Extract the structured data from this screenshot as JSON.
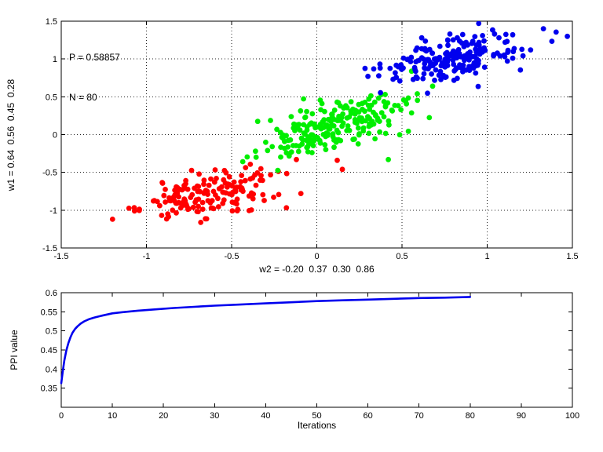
{
  "window": {
    "background": "#ffffff",
    "frame_color": "#000000",
    "grid_style": "dotted"
  },
  "chart_data": [
    {
      "type": "scatter",
      "title": "",
      "xlabel": "w2 = -0.20  0.37  0.30  0.86",
      "ylabel": "w1 = 0.64  0.56  0.45  0.28",
      "annotations": [
        "P = 0.58857",
        "N = 80"
      ],
      "xlim": [
        -1.5,
        1.5
      ],
      "ylim": [
        -1.5,
        1.5
      ],
      "xticks": [
        -1.5,
        -1,
        -0.5,
        0,
        0.5,
        1,
        1.5
      ],
      "xtick_labels": [
        "-1.5",
        "-1",
        "-0.5",
        "0",
        "0.5",
        "1",
        "1.5"
      ],
      "yticks": [
        -1.5,
        -1,
        -0.5,
        0,
        0.5,
        1,
        1.5
      ],
      "ytick_labels": [
        "-1.5",
        "-1",
        "-0.5",
        "0",
        "0.5",
        "1",
        "1.5"
      ],
      "grid": "dotted",
      "legend": "none",
      "marker": {
        "shape": "circle",
        "radius_px": 3.4
      },
      "random_seed": 11,
      "series": [
        {
          "name": "cluster-red",
          "color": "#ff0000",
          "count": 165,
          "center": [
            -0.63,
            -0.78
          ],
          "spread": [
            0.2,
            0.16
          ],
          "corr": 0.35,
          "extra_points": [
            [
              -1.07,
              -1.01
            ],
            [
              0.12,
              -0.34
            ],
            [
              0.15,
              -0.46
            ],
            [
              -0.12,
              -0.33
            ]
          ]
        },
        {
          "name": "cluster-green",
          "color": "#00ee00",
          "count": 215,
          "center": [
            0.1,
            0.13
          ],
          "spread": [
            0.2,
            0.185
          ],
          "corr": 0.55,
          "extra_points": [
            [
              0.42,
              -0.33
            ],
            [
              -0.36,
              -0.22
            ],
            [
              0.59,
              0.54
            ]
          ]
        },
        {
          "name": "cluster-blue",
          "color": "#0000ee",
          "count": 195,
          "center": [
            0.78,
            1.0
          ],
          "spread": [
            0.2,
            0.165
          ],
          "corr": 0.4,
          "extra_points": [
            [
              1.33,
              1.4
            ],
            [
              0.95,
              1.47
            ],
            [
              0.3,
              0.77
            ],
            [
              1.15,
              1.32
            ]
          ]
        }
      ]
    },
    {
      "type": "line",
      "title": "",
      "xlabel": "Iterations",
      "ylabel": "PPI value",
      "xlim": [
        0,
        100
      ],
      "ylim": [
        0.3,
        0.6
      ],
      "xticks": [
        0,
        10,
        20,
        30,
        40,
        50,
        60,
        70,
        80,
        90,
        100
      ],
      "xtick_labels": [
        "0",
        "10",
        "20",
        "30",
        "40",
        "50",
        "60",
        "70",
        "80",
        "90",
        "100"
      ],
      "yticks": [
        0.35,
        0.4,
        0.45,
        0.5,
        0.55,
        0.6
      ],
      "ytick_labels": [
        "0.35",
        "0.4",
        "0.45",
        "0.5",
        "0.55",
        "0.6"
      ],
      "grid": "none",
      "legend": "none",
      "line_color": "#0000ee",
      "line_width": 2.6,
      "x": [
        0,
        0.3,
        0.6,
        1,
        1.4,
        1.8,
        2.2,
        2.7,
        3.2,
        3.8,
        4.5,
        5.5,
        6.5,
        8,
        10,
        12,
        15,
        18,
        22,
        26,
        30,
        35,
        40,
        45,
        50,
        55,
        60,
        65,
        70,
        75,
        80
      ],
      "y": [
        0.363,
        0.395,
        0.422,
        0.449,
        0.468,
        0.483,
        0.495,
        0.505,
        0.512,
        0.519,
        0.525,
        0.531,
        0.535,
        0.54,
        0.546,
        0.549,
        0.553,
        0.556,
        0.56,
        0.563,
        0.566,
        0.569,
        0.572,
        0.575,
        0.578,
        0.58,
        0.582,
        0.584,
        0.586,
        0.587,
        0.589
      ]
    }
  ]
}
